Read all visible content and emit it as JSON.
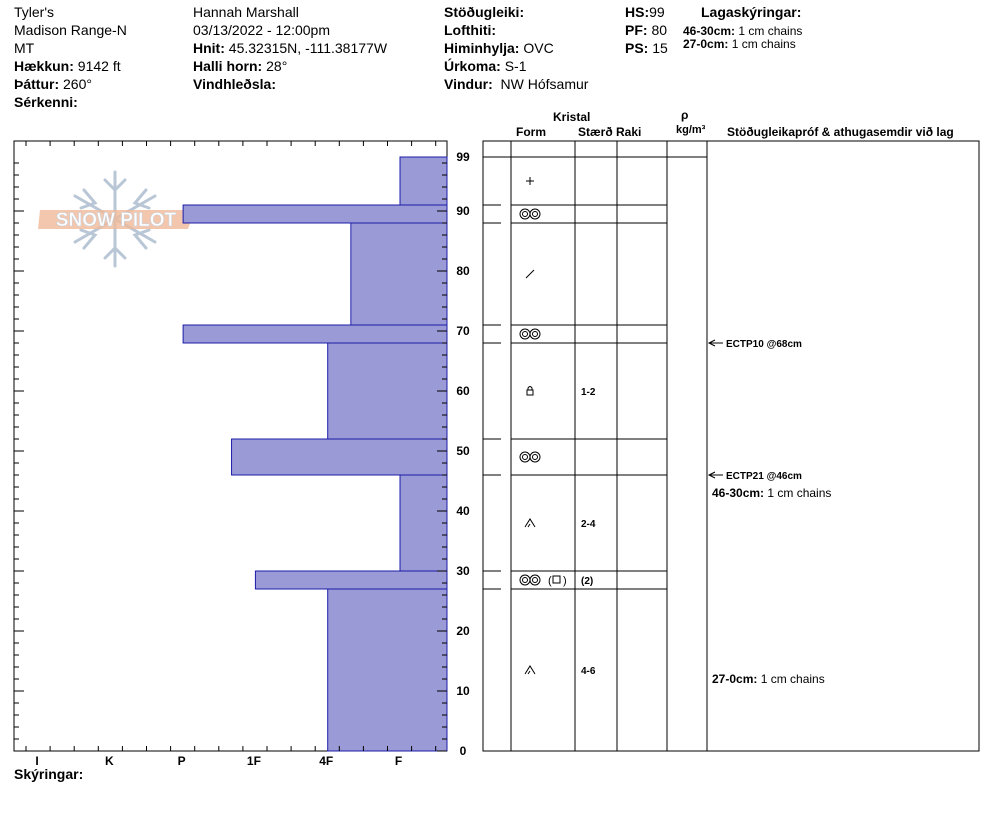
{
  "header": {
    "col1": {
      "line1": "Tyler's",
      "line2": "Madison Range-N",
      "line3": "MT",
      "elev_label": "Hækkun:",
      "elev_value": "9142 ft",
      "aspect_label": "Þáttur:",
      "aspect_value": "260°",
      "features_label": "Sérkenni:"
    },
    "col2": {
      "observer": "Hannah Marshall",
      "datetime": "03/13/2022 - 12:00pm",
      "coords_label": "Hnit:",
      "coords_value": "45.32315N, -111.38177W",
      "slope_label": "Halli horn:",
      "slope_value": "28°",
      "wind_label": "Vindhleðsla:"
    },
    "col3": {
      "stability_label": "Stöðugleiki:",
      "airtemp_label": "Lofthiti:",
      "sky_label": "Himinhylja:",
      "sky_value": "OVC",
      "precip_label": "Úrkoma:",
      "precip_value": "S-1",
      "wind_label": "Vindur:",
      "wind_value": "NW Hófsamur"
    },
    "col4": {
      "hs_label": "HS:",
      "hs_value": "99",
      "pf_label": "PF:",
      "pf_value": "80",
      "ps_label": "PS:",
      "ps_value": "15"
    },
    "col5": {
      "title": "Lagaskýringar:",
      "note1_label": "46-30cm:",
      "note1_value": "1 cm chains",
      "note2_label": "27-0cm:",
      "note2_value": "1 cm chains"
    }
  },
  "table_headers": {
    "kristal": "Kristal",
    "form": "Form",
    "size": "Stærð",
    "moisture": "Raki",
    "rho": "ρ",
    "density_unit": "kg/m³",
    "tests": "Stöðugleikapróf & athugasemdir við lag"
  },
  "footer": {
    "legend_label": "Skýringar:"
  },
  "logo": {
    "text": "SNOW PILOT"
  },
  "tests": [
    {
      "label": "ECTP10 @68cm",
      "depth": 68
    },
    {
      "label": "ECTP21 @46cm",
      "depth": 46
    }
  ],
  "comments": [
    {
      "label": "46-30cm:",
      "value": "1 cm chains",
      "depth": 43
    },
    {
      "label": "27-0cm:",
      "value": "1 cm chains",
      "depth": 12
    }
  ],
  "chart_data": {
    "type": "bar",
    "title": "",
    "xlabel": "",
    "ylabel": "",
    "ylim": [
      0,
      99
    ],
    "y_ticks": [
      "0",
      "10",
      "20",
      "30",
      "40",
      "50",
      "60",
      "70",
      "80",
      "90",
      "99"
    ],
    "hardness_categories": [
      "I",
      "K",
      "P",
      "1F",
      "4F",
      "F"
    ],
    "hardness_scale_note": "F at rightmost, I at leftmost; value = distance from right in category steps",
    "layers": [
      {
        "top": 99,
        "bottom": 91,
        "hardness": "F",
        "hardness_value": 0.65,
        "grain": "plus",
        "size": "",
        "moisture": ""
      },
      {
        "top": 91,
        "bottom": 88,
        "hardness": "P",
        "hardness_value": 3.65,
        "grain": "rounded",
        "size": "",
        "moisture": ""
      },
      {
        "top": 88,
        "bottom": 71,
        "hardness": "4F-",
        "hardness_value": 1.33,
        "grain": "slash",
        "size": "",
        "moisture": ""
      },
      {
        "top": 71,
        "bottom": 68,
        "hardness": "P",
        "hardness_value": 3.65,
        "grain": "rounded",
        "size": "",
        "moisture": ""
      },
      {
        "top": 68,
        "bottom": 52,
        "hardness": "4F",
        "hardness_value": 1.65,
        "grain": "lock",
        "size": "1-2",
        "moisture": ""
      },
      {
        "top": 52,
        "bottom": 46,
        "hardness": "1F-",
        "hardness_value": 2.98,
        "grain": "rounded",
        "size": "",
        "moisture": ""
      },
      {
        "top": 46,
        "bottom": 30,
        "hardness": "F",
        "hardness_value": 0.65,
        "grain": "depth-hoar",
        "size": "2-4",
        "moisture": ""
      },
      {
        "top": 30,
        "bottom": 27,
        "hardness": "1F",
        "hardness_value": 2.65,
        "grain": "rounded-faceted",
        "size": "(2)",
        "moisture": ""
      },
      {
        "top": 27,
        "bottom": 0,
        "hardness": "4F",
        "hardness_value": 1.65,
        "grain": "depth-hoar",
        "size": "4-6",
        "moisture": ""
      }
    ],
    "colors": {
      "bar_fill": "#9a9ad6",
      "bar_stroke": "#1c1ca8",
      "logo_blue": "#b9c6d6",
      "logo_orange": "#f0b998"
    }
  }
}
